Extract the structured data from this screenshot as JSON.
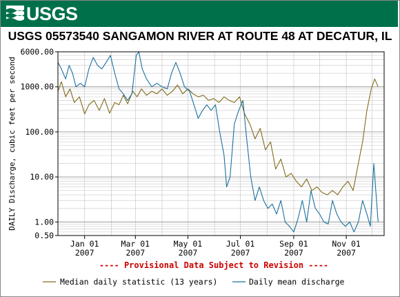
{
  "header": {
    "logo_text": "USGS"
  },
  "chart_data": {
    "type": "line",
    "title": "USGS 05573540 SANGAMON RIVER AT ROUTE 48 AT DECATUR, IL",
    "ylabel": "DAILY Discharge, cubic feet per second",
    "xlabel": "",
    "yscale": "log",
    "ylim": [
      0.5,
      6000
    ],
    "xlim": [
      "2006-12-01",
      "2007-12-15"
    ],
    "y_ticks": [
      {
        "value": 6000,
        "label": "6000.00"
      },
      {
        "value": 1000,
        "label": "1000.00"
      },
      {
        "value": 100,
        "label": "100.00"
      },
      {
        "value": 10,
        "label": "10.00"
      },
      {
        "value": 1,
        "label": "1.00"
      },
      {
        "value": 0.5,
        "label": "0.50"
      }
    ],
    "x_ticks": [
      {
        "date": "2007-01-01",
        "month": "Jan 01",
        "year": "2007"
      },
      {
        "date": "2007-03-01",
        "month": "Mar 01",
        "year": "2007"
      },
      {
        "date": "2007-05-01",
        "month": "May 01",
        "year": "2007"
      },
      {
        "date": "2007-07-01",
        "month": "Jul 01",
        "year": "2007"
      },
      {
        "date": "2007-09-01",
        "month": "Sep 01",
        "year": "2007"
      },
      {
        "date": "2007-11-01",
        "month": "Nov 01",
        "year": "2007"
      }
    ],
    "grid": true,
    "annotation": "---- Provisional Data Subject to Revision ----",
    "legend_position": "bottom",
    "series": [
      {
        "name": "Median daily statistic (13 years)",
        "color": "#806a1a",
        "points": [
          [
            "2006-12-01",
            800
          ],
          [
            "2006-12-05",
            1300
          ],
          [
            "2006-12-10",
            600
          ],
          [
            "2006-12-15",
            900
          ],
          [
            "2006-12-20",
            450
          ],
          [
            "2006-12-26",
            600
          ],
          [
            "2007-01-01",
            250
          ],
          [
            "2007-01-06",
            400
          ],
          [
            "2007-01-12",
            500
          ],
          [
            "2007-01-18",
            300
          ],
          [
            "2007-01-24",
            550
          ],
          [
            "2007-01-30",
            260
          ],
          [
            "2007-02-05",
            450
          ],
          [
            "2007-02-10",
            400
          ],
          [
            "2007-02-15",
            650
          ],
          [
            "2007-02-20",
            420
          ],
          [
            "2007-02-26",
            800
          ],
          [
            "2007-03-03",
            600
          ],
          [
            "2007-03-08",
            900
          ],
          [
            "2007-03-14",
            650
          ],
          [
            "2007-03-20",
            800
          ],
          [
            "2007-03-26",
            700
          ],
          [
            "2007-04-01",
            900
          ],
          [
            "2007-04-07",
            650
          ],
          [
            "2007-04-13",
            800
          ],
          [
            "2007-04-19",
            1100
          ],
          [
            "2007-04-25",
            700
          ],
          [
            "2007-05-01",
            900
          ],
          [
            "2007-05-07",
            700
          ],
          [
            "2007-05-13",
            600
          ],
          [
            "2007-05-19",
            650
          ],
          [
            "2007-05-25",
            500
          ],
          [
            "2007-05-31",
            550
          ],
          [
            "2007-06-06",
            450
          ],
          [
            "2007-06-12",
            600
          ],
          [
            "2007-06-18",
            500
          ],
          [
            "2007-06-24",
            450
          ],
          [
            "2007-06-30",
            600
          ],
          [
            "2007-07-06",
            250
          ],
          [
            "2007-07-12",
            150
          ],
          [
            "2007-07-18",
            70
          ],
          [
            "2007-07-24",
            120
          ],
          [
            "2007-07-30",
            40
          ],
          [
            "2007-08-05",
            60
          ],
          [
            "2007-08-11",
            15
          ],
          [
            "2007-08-17",
            25
          ],
          [
            "2007-08-23",
            10
          ],
          [
            "2007-08-29",
            12
          ],
          [
            "2007-09-04",
            8
          ],
          [
            "2007-09-10",
            6
          ],
          [
            "2007-09-16",
            9
          ],
          [
            "2007-09-22",
            5
          ],
          [
            "2007-09-28",
            6
          ],
          [
            "2007-10-04",
            4.5
          ],
          [
            "2007-10-10",
            4
          ],
          [
            "2007-10-16",
            5
          ],
          [
            "2007-10-22",
            4
          ],
          [
            "2007-10-28",
            6
          ],
          [
            "2007-11-03",
            8
          ],
          [
            "2007-11-09",
            5
          ],
          [
            "2007-11-15",
            20
          ],
          [
            "2007-11-20",
            60
          ],
          [
            "2007-11-25",
            300
          ],
          [
            "2007-11-30",
            900
          ],
          [
            "2007-12-04",
            1500
          ],
          [
            "2007-12-08",
            1000
          ]
        ]
      },
      {
        "name": "Daily mean discharge",
        "color": "#1a6fa0",
        "points": [
          [
            "2006-12-01",
            3500
          ],
          [
            "2006-12-05",
            2500
          ],
          [
            "2006-12-10",
            1500
          ],
          [
            "2006-12-14",
            3000
          ],
          [
            "2006-12-18",
            2000
          ],
          [
            "2006-12-22",
            1000
          ],
          [
            "2006-12-27",
            1200
          ],
          [
            "2007-01-01",
            1000
          ],
          [
            "2007-01-06",
            2500
          ],
          [
            "2007-01-11",
            4500
          ],
          [
            "2007-01-16",
            3000
          ],
          [
            "2007-01-21",
            2500
          ],
          [
            "2007-01-26",
            3500
          ],
          [
            "2007-01-31",
            5000
          ],
          [
            "2007-02-05",
            2000
          ],
          [
            "2007-02-10",
            900
          ],
          [
            "2007-02-15",
            700
          ],
          [
            "2007-02-20",
            500
          ],
          [
            "2007-02-25",
            700
          ],
          [
            "2007-03-02",
            5000
          ],
          [
            "2007-03-05",
            6000
          ],
          [
            "2007-03-09",
            2500
          ],
          [
            "2007-03-14",
            1500
          ],
          [
            "2007-03-20",
            1000
          ],
          [
            "2007-03-26",
            1200
          ],
          [
            "2007-04-01",
            1000
          ],
          [
            "2007-04-07",
            900
          ],
          [
            "2007-04-12",
            2000
          ],
          [
            "2007-04-17",
            3500
          ],
          [
            "2007-04-22",
            2000
          ],
          [
            "2007-04-27",
            1000
          ],
          [
            "2007-05-03",
            800
          ],
          [
            "2007-05-08",
            400
          ],
          [
            "2007-05-13",
            200
          ],
          [
            "2007-05-18",
            300
          ],
          [
            "2007-05-23",
            400
          ],
          [
            "2007-05-28",
            300
          ],
          [
            "2007-06-02",
            400
          ],
          [
            "2007-06-07",
            100
          ],
          [
            "2007-06-12",
            30
          ],
          [
            "2007-06-15",
            6
          ],
          [
            "2007-06-19",
            10
          ],
          [
            "2007-06-24",
            150
          ],
          [
            "2007-06-29",
            300
          ],
          [
            "2007-07-04",
            500
          ],
          [
            "2007-07-08",
            80
          ],
          [
            "2007-07-13",
            10
          ],
          [
            "2007-07-18",
            3
          ],
          [
            "2007-07-23",
            6
          ],
          [
            "2007-07-28",
            3
          ],
          [
            "2007-08-02",
            2
          ],
          [
            "2007-08-07",
            2.5
          ],
          [
            "2007-08-12",
            1.5
          ],
          [
            "2007-08-17",
            3
          ],
          [
            "2007-08-22",
            1
          ],
          [
            "2007-08-27",
            0.8
          ],
          [
            "2007-09-01",
            0.6
          ],
          [
            "2007-09-06",
            1.2
          ],
          [
            "2007-09-11",
            3
          ],
          [
            "2007-09-16",
            1
          ],
          [
            "2007-09-21",
            5
          ],
          [
            "2007-09-26",
            2
          ],
          [
            "2007-10-01",
            1.5
          ],
          [
            "2007-10-06",
            1
          ],
          [
            "2007-10-11",
            0.9
          ],
          [
            "2007-10-16",
            3
          ],
          [
            "2007-10-21",
            1.5
          ],
          [
            "2007-10-26",
            1
          ],
          [
            "2007-10-31",
            0.8
          ],
          [
            "2007-11-05",
            1
          ],
          [
            "2007-11-10",
            0.6
          ],
          [
            "2007-11-15",
            1
          ],
          [
            "2007-11-20",
            3
          ],
          [
            "2007-11-25",
            1.5
          ],
          [
            "2007-11-29",
            0.8
          ],
          [
            "2007-12-03",
            20
          ],
          [
            "2007-12-05",
            6
          ],
          [
            "2007-12-08",
            1
          ]
        ]
      }
    ]
  }
}
